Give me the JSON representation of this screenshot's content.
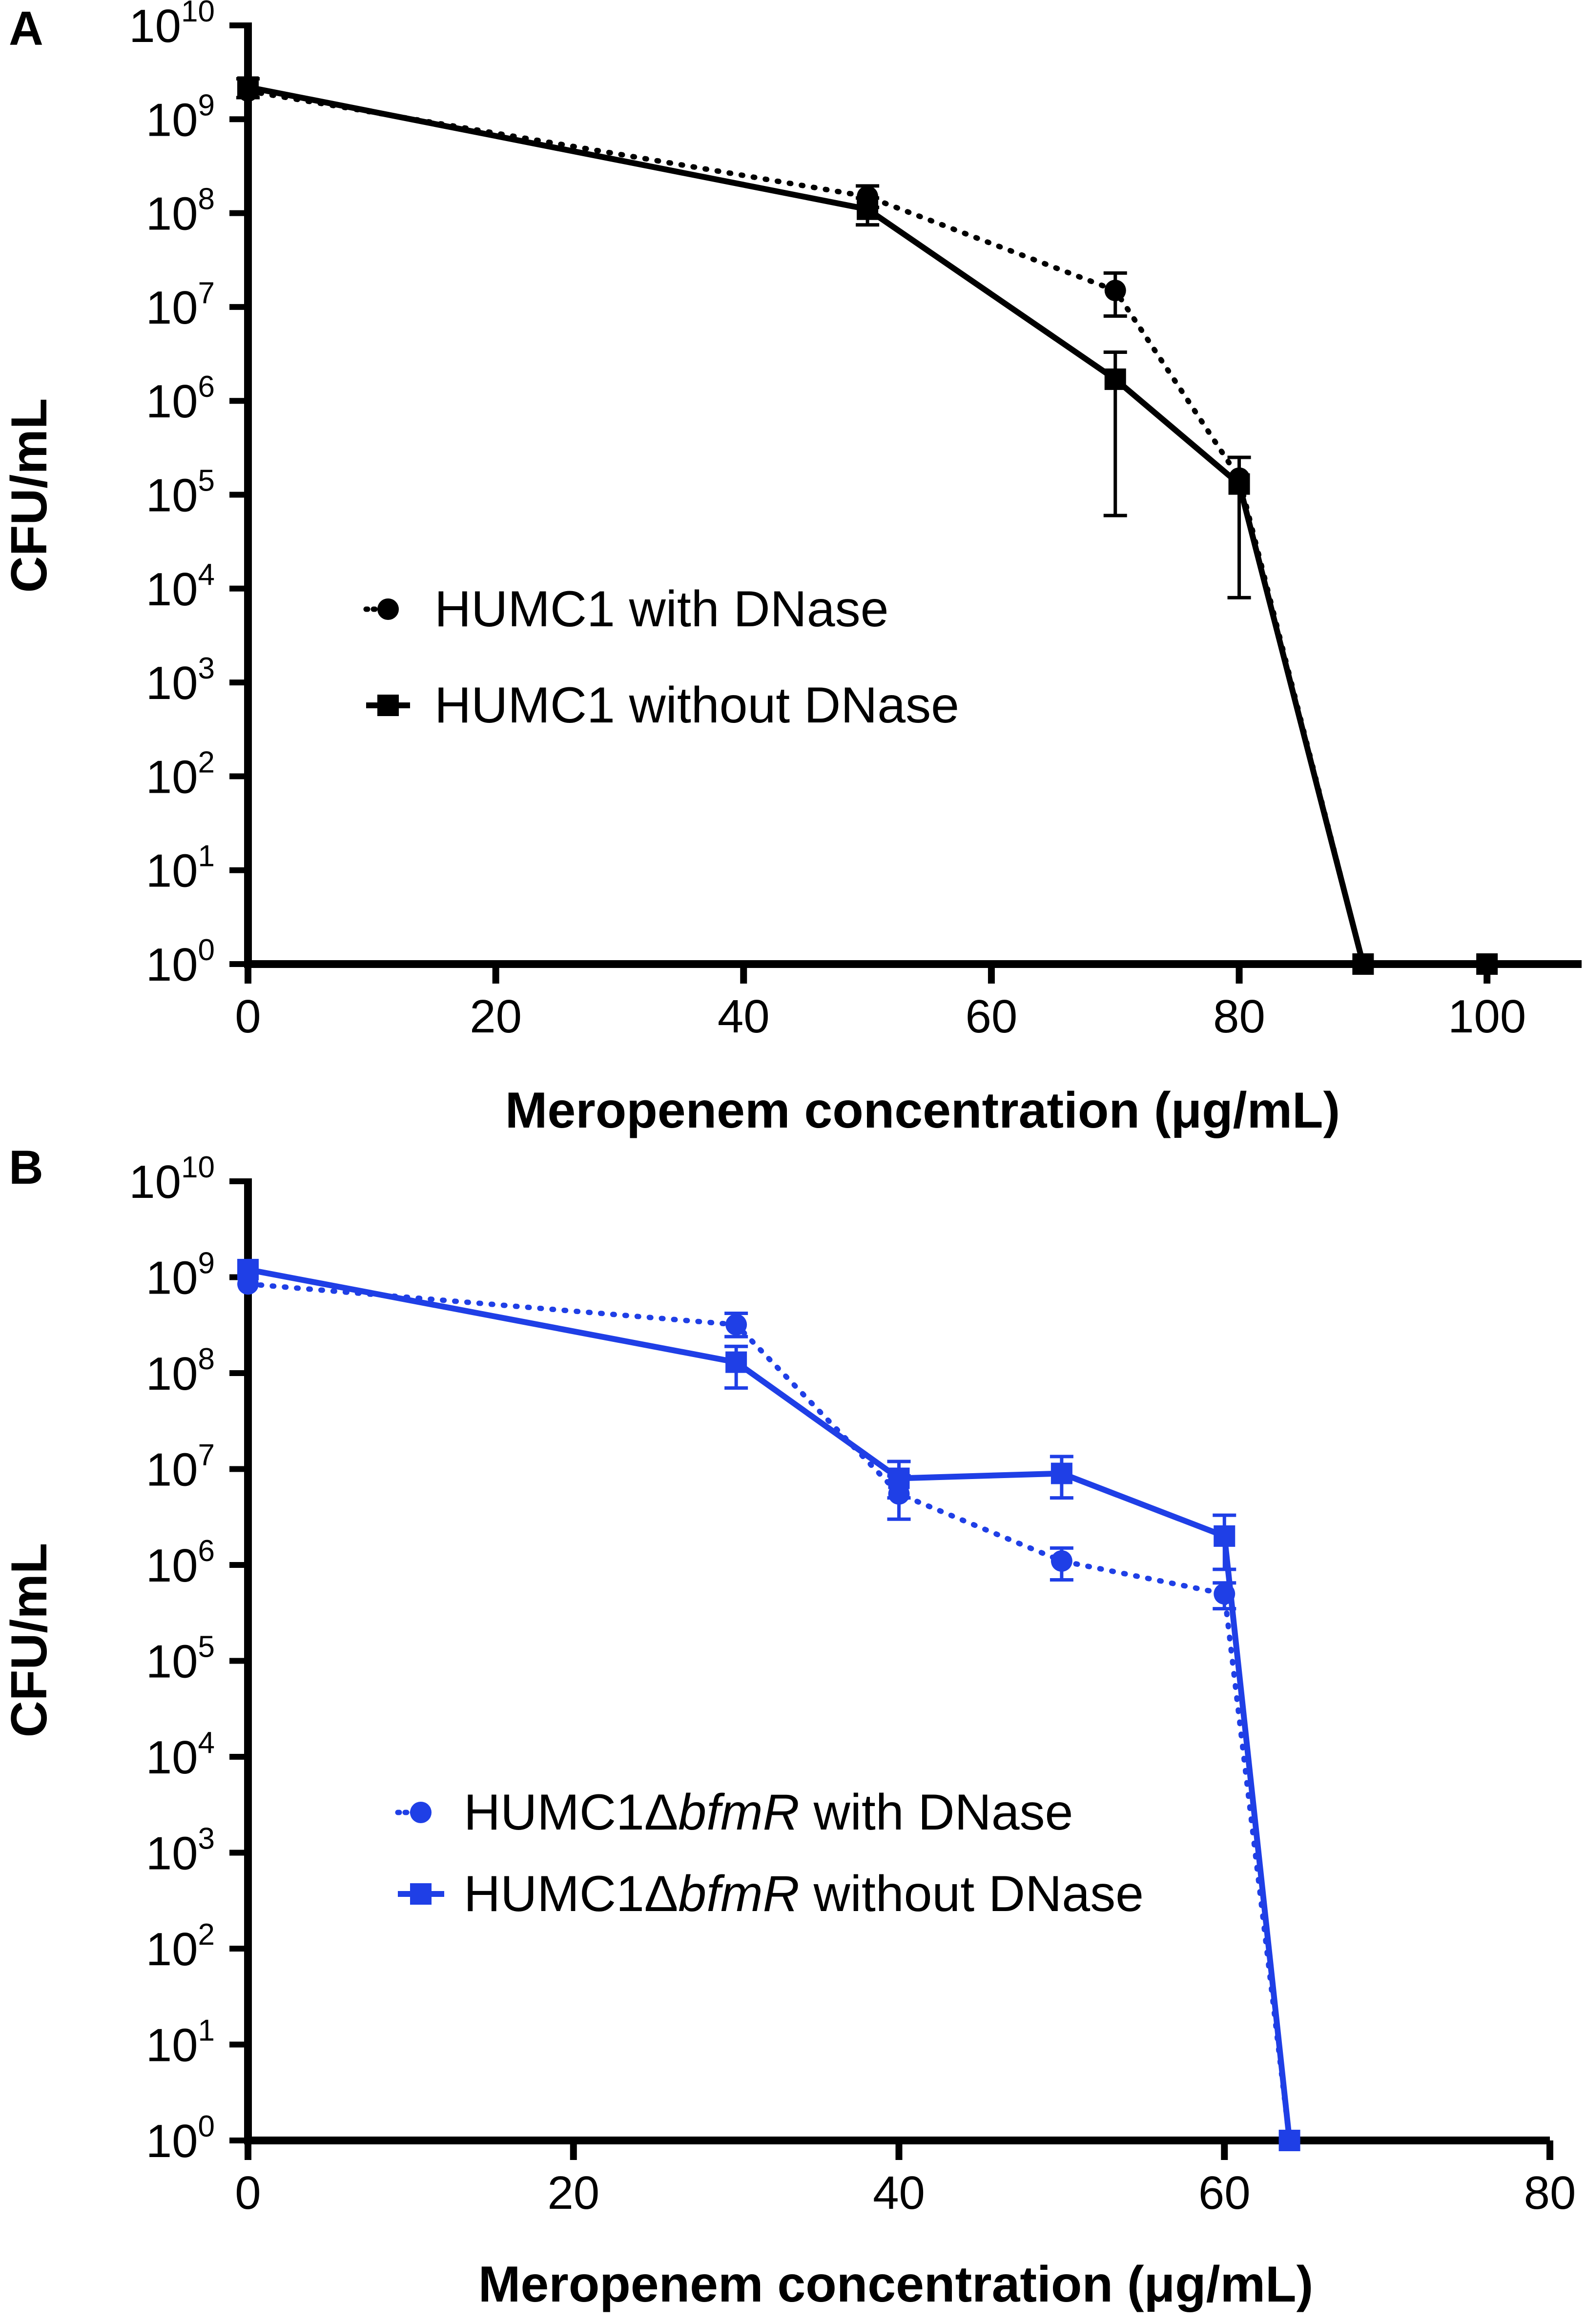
{
  "chart_data": [
    {
      "panel": "A",
      "type": "line",
      "color": "#000000",
      "xlabel": "Meropenem concentration (μg/mL)",
      "ylabel": "CFU/mL",
      "xlim": [
        0,
        110
      ],
      "xticks": [
        "0",
        "20",
        "40",
        "60",
        "80",
        "100"
      ],
      "ylim": [
        1,
        10000000000
      ],
      "yscale": "log",
      "yticks": [
        {
          "base": "10",
          "exp": "10"
        },
        {
          "base": "10",
          "exp": "9"
        },
        {
          "base": "10",
          "exp": "8"
        },
        {
          "base": "10",
          "exp": "7"
        },
        {
          "base": "10",
          "exp": "6"
        },
        {
          "base": "10",
          "exp": "5"
        },
        {
          "base": "10",
          "exp": "4"
        },
        {
          "base": "10",
          "exp": "3"
        },
        {
          "base": "10",
          "exp": "2"
        },
        {
          "base": "10",
          "exp": "1"
        },
        {
          "base": "10",
          "exp": "0"
        }
      ],
      "legend_position": "center-left",
      "series": [
        {
          "name": "HUMC1 with DNase",
          "marker": "circle",
          "line": "dotted",
          "x": [
            0,
            50,
            70,
            80,
            90,
            100
          ],
          "y": [
            2000000000,
            150000000,
            15000000,
            150000,
            1,
            1
          ],
          "err_low": [
            null,
            115000000,
            8000000,
            null,
            null,
            null
          ],
          "err_high": [
            null,
            195000000,
            23000000,
            null,
            null,
            null
          ]
        },
        {
          "name": "HUMC1 without DNase",
          "marker": "square",
          "line": "solid",
          "x": [
            0,
            50,
            70,
            80,
            90,
            100
          ],
          "y": [
            2200000000,
            110000000,
            1700000,
            130000,
            1,
            1
          ],
          "err_low": [
            1700000000,
            75000000,
            60000,
            8000,
            null,
            null
          ],
          "err_high": [
            2700000000,
            145000000,
            3300000,
            250000,
            null,
            null
          ]
        }
      ]
    },
    {
      "panel": "B",
      "type": "line",
      "color": "#1f3fe6",
      "xlabel": "Meropenem concentration (μg/mL)",
      "ylabel": "CFU/mL",
      "xlim": [
        0,
        80
      ],
      "xticks": [
        "0",
        "20",
        "40",
        "60",
        "80"
      ],
      "ylim": [
        1,
        10000000000
      ],
      "yscale": "log",
      "yticks": [
        {
          "base": "10",
          "exp": "10"
        },
        {
          "base": "10",
          "exp": "9"
        },
        {
          "base": "10",
          "exp": "8"
        },
        {
          "base": "10",
          "exp": "7"
        },
        {
          "base": "10",
          "exp": "6"
        },
        {
          "base": "10",
          "exp": "5"
        },
        {
          "base": "10",
          "exp": "4"
        },
        {
          "base": "10",
          "exp": "3"
        },
        {
          "base": "10",
          "exp": "2"
        },
        {
          "base": "10",
          "exp": "1"
        },
        {
          "base": "10",
          "exp": "0"
        }
      ],
      "legend_position": "center-left",
      "series": [
        {
          "name": "HUMC1ΔbfmR with DNase",
          "name_parts": [
            "HUMC1Δ",
            "bfmR",
            " with DNase"
          ],
          "marker": "circle",
          "line": "dotted",
          "x": [
            0,
            30,
            40,
            50,
            60,
            64
          ],
          "y": [
            850000000,
            320000000,
            5500000,
            1100000,
            500000,
            1
          ],
          "err_low": [
            null,
            240000000,
            3000000,
            700000,
            350000,
            null
          ],
          "err_high": [
            null,
            420000000,
            8500000,
            1500000,
            650000,
            null
          ]
        },
        {
          "name": "HUMC1ΔbfmR without DNase",
          "name_parts": [
            "HUMC1Δ",
            "bfmR",
            " without DNase"
          ],
          "marker": "square",
          "line": "solid",
          "x": [
            0,
            30,
            40,
            50,
            60,
            64
          ],
          "y": [
            1200000000,
            130000000,
            8000000,
            9000000,
            2000000,
            1
          ],
          "err_low": [
            null,
            70000000,
            5000000,
            5000000,
            900000,
            null
          ],
          "err_high": [
            null,
            190000000,
            12000000,
            13500000,
            3300000,
            null
          ]
        }
      ]
    }
  ]
}
